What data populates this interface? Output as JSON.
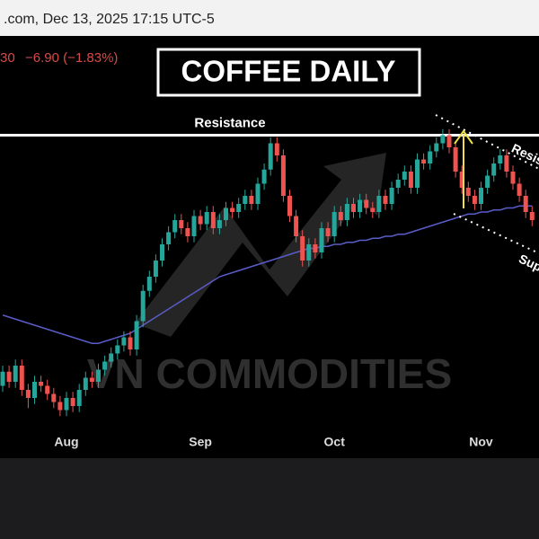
{
  "header": {
    "source": ".com, Dec 13, 2025 17:15 UTC-5",
    "price_tail": "30",
    "change": "−6.90 (−1.83%)"
  },
  "chart_data": {
    "type": "candlestick",
    "title": "COFFEE DAILY",
    "watermark": "VN COMMODITIES",
    "x_labels": [
      {
        "index": 10,
        "label": "Aug"
      },
      {
        "index": 31,
        "label": "Sep"
      },
      {
        "index": 52,
        "label": "Oct"
      },
      {
        "index": 75,
        "label": "Nov"
      }
    ],
    "ylim": [
      280,
      440
    ],
    "up_color": "#26a69a",
    "down_color": "#ef5350",
    "ma_color": "#5a5cc8",
    "resistance": {
      "label": "Resistance",
      "value": 422
    },
    "channel_labels": [
      "Resis",
      "Sup"
    ],
    "open": [
      298,
      305,
      300,
      308,
      296,
      292,
      300,
      298,
      294,
      290,
      286,
      292,
      288,
      296,
      302,
      300,
      306,
      310,
      314,
      318,
      322,
      316,
      330,
      345,
      352,
      360,
      368,
      374,
      380,
      376,
      372,
      382,
      378,
      384,
      376,
      380,
      386,
      384,
      388,
      392,
      388,
      398,
      405,
      418,
      412,
      392,
      382,
      372,
      360,
      368,
      364,
      376,
      372,
      384,
      380,
      388,
      384,
      390,
      386,
      384,
      392,
      388,
      396,
      400,
      404,
      396,
      410,
      408,
      414,
      418,
      422,
      416,
      404,
      396,
      392,
      388,
      396,
      402,
      408,
      412,
      404,
      398,
      392,
      384
    ],
    "high": [
      308,
      308,
      311,
      311,
      299,
      303,
      303,
      301,
      297,
      293,
      295,
      295,
      299,
      305,
      305,
      309,
      313,
      317,
      321,
      325,
      325,
      333,
      348,
      355,
      363,
      371,
      377,
      383,
      383,
      379,
      385,
      385,
      387,
      387,
      383,
      389,
      389,
      391,
      395,
      395,
      401,
      408,
      421,
      421,
      415,
      395,
      385,
      375,
      371,
      371,
      379,
      379,
      387,
      387,
      391,
      391,
      393,
      393,
      389,
      395,
      395,
      399,
      403,
      407,
      407,
      413,
      413,
      417,
      421,
      425,
      425,
      419,
      407,
      399,
      395,
      399,
      405,
      411,
      415,
      415,
      407,
      401,
      395,
      387
    ],
    "low": [
      295,
      297,
      297,
      293,
      287,
      289,
      295,
      291,
      287,
      283,
      283,
      285,
      285,
      293,
      297,
      297,
      303,
      307,
      311,
      315,
      313,
      313,
      327,
      342,
      349,
      357,
      365,
      371,
      373,
      369,
      369,
      375,
      375,
      373,
      373,
      377,
      381,
      381,
      385,
      385,
      385,
      395,
      402,
      409,
      389,
      379,
      369,
      357,
      357,
      361,
      361,
      369,
      369,
      377,
      377,
      381,
      381,
      383,
      381,
      381,
      385,
      385,
      393,
      397,
      393,
      393,
      405,
      405,
      411,
      415,
      413,
      401,
      393,
      389,
      385,
      385,
      393,
      399,
      405,
      401,
      395,
      389,
      381,
      377
    ],
    "close": [
      305,
      300,
      308,
      296,
      292,
      300,
      298,
      294,
      290,
      286,
      292,
      288,
      296,
      302,
      300,
      306,
      310,
      314,
      318,
      322,
      316,
      330,
      345,
      352,
      360,
      368,
      374,
      380,
      376,
      372,
      382,
      378,
      384,
      376,
      380,
      386,
      384,
      388,
      392,
      388,
      398,
      405,
      418,
      412,
      392,
      382,
      372,
      360,
      368,
      364,
      376,
      372,
      384,
      380,
      388,
      384,
      390,
      386,
      384,
      392,
      388,
      396,
      400,
      404,
      396,
      410,
      408,
      414,
      418,
      422,
      416,
      404,
      396,
      392,
      388,
      396,
      402,
      408,
      412,
      404,
      398,
      392,
      384,
      380
    ],
    "ma": [
      333,
      332,
      331,
      330,
      329,
      328,
      327,
      326,
      325,
      324,
      323,
      322,
      321,
      320,
      319,
      319,
      320,
      321,
      322,
      323,
      324,
      326,
      328,
      330,
      332,
      334,
      336,
      338,
      340,
      342,
      344,
      346,
      348,
      350,
      352,
      353,
      354,
      355,
      356,
      357,
      358,
      359,
      360,
      361,
      362,
      363,
      364,
      365,
      366,
      366,
      367,
      367,
      368,
      368,
      369,
      369,
      370,
      370,
      371,
      371,
      372,
      372,
      373,
      373,
      374,
      375,
      376,
      377,
      378,
      379,
      380,
      381,
      382,
      383,
      383,
      384,
      384,
      385,
      385,
      386,
      386,
      387,
      387,
      387
    ]
  }
}
